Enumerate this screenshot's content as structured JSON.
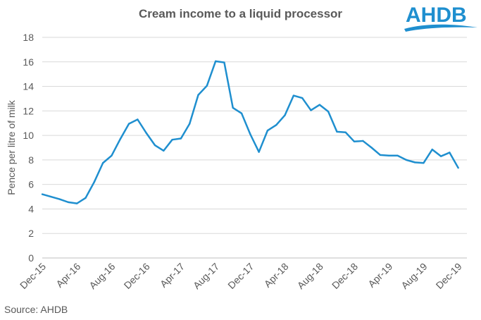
{
  "chart_data": {
    "type": "line",
    "title": "Cream income to a liquid processor",
    "xlabel": "",
    "ylabel": "Pence per litre of milk",
    "ylim": [
      0,
      18
    ],
    "yticks": [
      0,
      2,
      4,
      6,
      8,
      10,
      12,
      14,
      16,
      18
    ],
    "grid": true,
    "x_tick_labels": [
      "Dec-15",
      "Apr-16",
      "Aug-16",
      "Dec-16",
      "Apr-17",
      "Aug-17",
      "Dec-17",
      "Apr-18",
      "Aug-18",
      "Dec-18",
      "Apr-19",
      "Aug-19",
      "Dec-19"
    ],
    "x": [
      "Dec-15",
      "Jan-16",
      "Feb-16",
      "Mar-16",
      "Apr-16",
      "May-16",
      "Jun-16",
      "Jul-16",
      "Aug-16",
      "Sep-16",
      "Oct-16",
      "Nov-16",
      "Dec-16",
      "Jan-17",
      "Feb-17",
      "Mar-17",
      "Apr-17",
      "May-17",
      "Jun-17",
      "Jul-17",
      "Aug-17",
      "Sep-17",
      "Oct-17",
      "Nov-17",
      "Dec-17",
      "Jan-18",
      "Feb-18",
      "Mar-18",
      "Apr-18",
      "May-18",
      "Jun-18",
      "Jul-18",
      "Aug-18",
      "Sep-18",
      "Oct-18",
      "Nov-18",
      "Dec-18",
      "Jan-19",
      "Feb-19",
      "Mar-19",
      "Apr-19",
      "May-19",
      "Jun-19",
      "Jul-19",
      "Aug-19",
      "Sep-19",
      "Oct-19",
      "Nov-19",
      "Dec-19"
    ],
    "series": [
      {
        "color": "#1f8fcf",
        "values": [
          5.2,
          5.0,
          4.8,
          4.55,
          4.45,
          4.9,
          6.2,
          7.75,
          8.35,
          9.7,
          10.95,
          11.3,
          10.2,
          9.2,
          8.75,
          9.65,
          9.75,
          10.95,
          13.3,
          14.05,
          16.05,
          15.95,
          12.25,
          11.8,
          10.1,
          8.65,
          10.4,
          10.85,
          11.65,
          13.25,
          13.05,
          12.05,
          12.5,
          11.95,
          10.3,
          10.25,
          9.5,
          9.55,
          9.0,
          8.4,
          8.35,
          8.35,
          8.0,
          7.8,
          7.75,
          8.85,
          8.3,
          8.6,
          7.35
        ]
      }
    ]
  },
  "source": "Source: AHDB",
  "logo": {
    "text": "AHDB",
    "color": "#1f8fcf",
    "icon": "ahdb-logo"
  },
  "colors": {
    "grid": "#d9d9d9",
    "axis": "#bfbfbf",
    "text": "#595959"
  }
}
